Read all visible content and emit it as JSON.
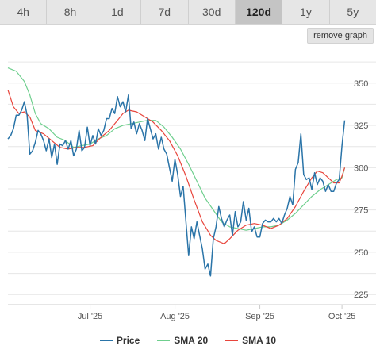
{
  "tabs": [
    {
      "label": "4h",
      "active": false
    },
    {
      "label": "8h",
      "active": false
    },
    {
      "label": "1d",
      "active": false
    },
    {
      "label": "7d",
      "active": false
    },
    {
      "label": "30d",
      "active": false
    },
    {
      "label": "120d",
      "active": true
    },
    {
      "label": "1y",
      "active": false
    },
    {
      "label": "5y",
      "active": false
    }
  ],
  "remove_graph_label": "remove graph",
  "colors": {
    "price": "#2a74a8",
    "sma20": "#6fcf8e",
    "sma10": "#e8453c",
    "grid": "#e6e6e6"
  },
  "chart_data": {
    "type": "line",
    "x_tick_labels": [
      {
        "label": "Jul '25",
        "day": 30
      },
      {
        "label": "Aug '25",
        "day": 61
      },
      {
        "label": "Sep '25",
        "day": 92
      },
      {
        "label": "Oct '25",
        "day": 122
      }
    ],
    "y_ticks": [
      225,
      250,
      275,
      300,
      325,
      350
    ],
    "ylim": [
      219,
      371
    ],
    "xlim": [
      0,
      124
    ],
    "grid": true,
    "legend_position": "bottom",
    "series": [
      {
        "name": "Price",
        "color_key": "price",
        "points": [
          [
            0,
            317
          ],
          [
            1,
            319
          ],
          [
            2,
            323
          ],
          [
            3,
            331
          ],
          [
            4,
            331
          ],
          [
            5,
            334
          ],
          [
            6,
            339
          ],
          [
            7,
            331
          ],
          [
            8,
            308
          ],
          [
            9,
            310
          ],
          [
            10,
            315
          ],
          [
            11,
            322
          ],
          [
            12,
            320
          ],
          [
            13,
            316
          ],
          [
            14,
            310
          ],
          [
            15,
            317
          ],
          [
            16,
            306
          ],
          [
            17,
            314
          ],
          [
            18,
            302
          ],
          [
            19,
            314
          ],
          [
            20,
            313
          ],
          [
            21,
            316
          ],
          [
            22,
            311
          ],
          [
            23,
            316
          ],
          [
            24,
            307
          ],
          [
            25,
            311
          ],
          [
            26,
            322
          ],
          [
            27,
            310
          ],
          [
            28,
            312
          ],
          [
            29,
            324
          ],
          [
            30,
            313
          ],
          [
            31,
            319
          ],
          [
            32,
            314
          ],
          [
            33,
            323
          ],
          [
            34,
            319
          ],
          [
            35,
            322
          ],
          [
            36,
            329
          ],
          [
            37,
            329
          ],
          [
            38,
            335
          ],
          [
            39,
            332
          ],
          [
            40,
            342
          ],
          [
            41,
            336
          ],
          [
            42,
            339
          ],
          [
            43,
            333
          ],
          [
            44,
            343
          ],
          [
            45,
            323
          ],
          [
            46,
            327
          ],
          [
            47,
            320
          ],
          [
            48,
            326
          ],
          [
            49,
            322
          ],
          [
            50,
            316
          ],
          [
            51,
            329
          ],
          [
            52,
            323
          ],
          [
            53,
            317
          ],
          [
            54,
            320
          ],
          [
            55,
            311
          ],
          [
            56,
            318
          ],
          [
            57,
            311
          ],
          [
            58,
            308
          ],
          [
            59,
            300
          ],
          [
            60,
            292
          ],
          [
            61,
            305
          ],
          [
            62,
            296
          ],
          [
            63,
            283
          ],
          [
            64,
            289
          ],
          [
            65,
            268
          ],
          [
            66,
            248
          ],
          [
            67,
            265
          ],
          [
            68,
            258
          ],
          [
            69,
            268
          ],
          [
            70,
            260
          ],
          [
            71,
            252
          ],
          [
            72,
            240
          ],
          [
            73,
            243
          ],
          [
            74,
            236
          ],
          [
            75,
            258
          ],
          [
            76,
            265
          ],
          [
            77,
            277
          ],
          [
            78,
            270
          ],
          [
            79,
            265
          ],
          [
            80,
            269
          ],
          [
            81,
            272
          ],
          [
            82,
            260
          ],
          [
            83,
            274
          ],
          [
            84,
            265
          ],
          [
            85,
            268
          ],
          [
            86,
            280
          ],
          [
            87,
            269
          ],
          [
            88,
            276
          ],
          [
            89,
            262
          ],
          [
            90,
            265
          ],
          [
            91,
            259
          ],
          [
            92,
            259
          ],
          [
            93,
            267
          ],
          [
            94,
            269
          ],
          [
            95,
            268
          ],
          [
            96,
            268
          ],
          [
            97,
            270
          ],
          [
            98,
            268
          ],
          [
            99,
            270
          ],
          [
            100,
            267
          ],
          [
            101,
            272
          ],
          [
            102,
            276
          ],
          [
            103,
            283
          ],
          [
            104,
            278
          ],
          [
            105,
            299
          ],
          [
            106,
            303
          ],
          [
            107,
            320
          ],
          [
            108,
            296
          ],
          [
            109,
            293
          ],
          [
            110,
            294
          ],
          [
            111,
            287
          ],
          [
            112,
            297
          ],
          [
            113,
            290
          ],
          [
            114,
            294
          ],
          [
            115,
            292
          ],
          [
            116,
            286
          ],
          [
            117,
            290
          ],
          [
            118,
            286
          ],
          [
            119,
            286
          ],
          [
            120,
            291
          ],
          [
            121,
            293
          ],
          [
            122,
            313
          ],
          [
            123,
            328
          ]
        ]
      },
      {
        "name": "SMA 20",
        "color_key": "sma20",
        "points": [
          [
            0,
            359
          ],
          [
            3,
            357
          ],
          [
            6,
            351
          ],
          [
            8,
            343
          ],
          [
            10,
            332
          ],
          [
            12,
            326
          ],
          [
            15,
            323
          ],
          [
            18,
            318
          ],
          [
            21,
            316
          ],
          [
            24,
            312
          ],
          [
            27,
            313
          ],
          [
            30,
            314
          ],
          [
            33,
            317
          ],
          [
            36,
            319
          ],
          [
            39,
            323
          ],
          [
            42,
            325
          ],
          [
            45,
            326
          ],
          [
            48,
            327
          ],
          [
            51,
            328
          ],
          [
            54,
            328
          ],
          [
            57,
            324
          ],
          [
            60,
            318
          ],
          [
            63,
            311
          ],
          [
            66,
            302
          ],
          [
            69,
            292
          ],
          [
            72,
            282
          ],
          [
            75,
            275
          ],
          [
            78,
            268
          ],
          [
            81,
            265
          ],
          [
            84,
            264
          ],
          [
            87,
            263
          ],
          [
            90,
            264
          ],
          [
            93,
            265
          ],
          [
            96,
            265
          ],
          [
            99,
            266
          ],
          [
            102,
            269
          ],
          [
            105,
            273
          ],
          [
            108,
            278
          ],
          [
            111,
            283
          ],
          [
            114,
            287
          ],
          [
            117,
            290
          ],
          [
            120,
            293
          ],
          [
            122,
            294
          ],
          [
            123,
            300
          ]
        ]
      },
      {
        "name": "SMA 10",
        "color_key": "sma10",
        "points": [
          [
            0,
            346
          ],
          [
            2,
            336
          ],
          [
            4,
            332
          ],
          [
            6,
            333
          ],
          [
            8,
            330
          ],
          [
            10,
            322
          ],
          [
            13,
            320
          ],
          [
            16,
            316
          ],
          [
            19,
            312
          ],
          [
            22,
            311
          ],
          [
            25,
            312
          ],
          [
            28,
            312
          ],
          [
            31,
            313
          ],
          [
            34,
            318
          ],
          [
            37,
            322
          ],
          [
            40,
            328
          ],
          [
            42,
            332
          ],
          [
            44,
            334
          ],
          [
            47,
            333
          ],
          [
            50,
            330
          ],
          [
            53,
            327
          ],
          [
            56,
            322
          ],
          [
            59,
            316
          ],
          [
            62,
            307
          ],
          [
            65,
            295
          ],
          [
            68,
            281
          ],
          [
            71,
            268
          ],
          [
            74,
            260
          ],
          [
            76,
            257
          ],
          [
            79,
            255
          ],
          [
            81,
            258
          ],
          [
            84,
            263
          ],
          [
            87,
            266
          ],
          [
            90,
            267
          ],
          [
            93,
            266
          ],
          [
            96,
            264
          ],
          [
            99,
            266
          ],
          [
            102,
            270
          ],
          [
            105,
            277
          ],
          [
            108,
            286
          ],
          [
            111,
            294
          ],
          [
            113,
            298
          ],
          [
            115,
            297
          ],
          [
            117,
            294
          ],
          [
            119,
            291
          ],
          [
            121,
            291
          ],
          [
            122,
            295
          ],
          [
            123,
            300
          ]
        ]
      }
    ]
  }
}
